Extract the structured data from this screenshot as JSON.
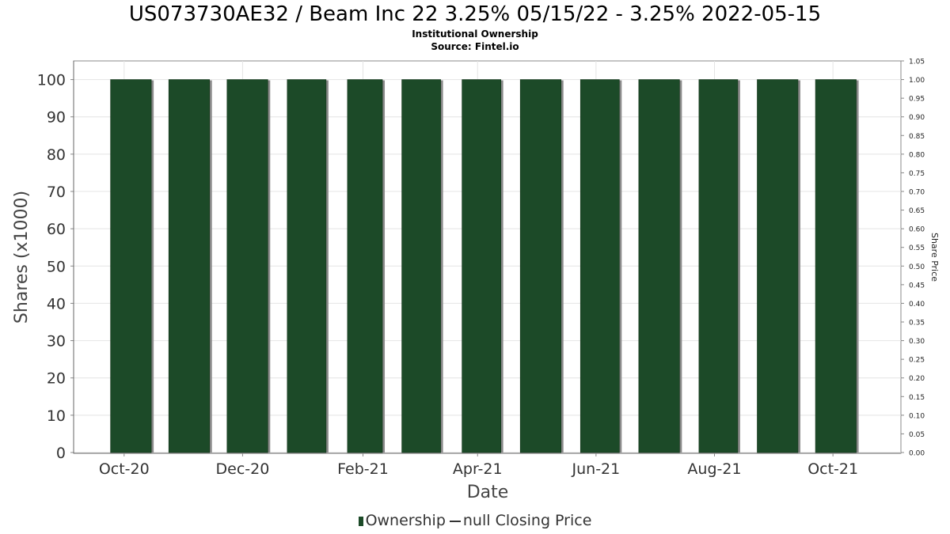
{
  "chart_data": {
    "type": "bar",
    "title": "US073730AE32 / Beam Inc 22 3.25% 05/15/22 - 3.25% 2022-05-15",
    "subtitle": "Institutional Ownership",
    "source": "Source: Fintel.io",
    "xlabel": "Date",
    "ylabel": "Shares (x1000)",
    "y2label": "Share Price",
    "ylim": [
      0,
      105
    ],
    "y2lim": [
      0,
      1.05
    ],
    "yticks": [
      0,
      10,
      20,
      30,
      40,
      50,
      60,
      70,
      80,
      90,
      100
    ],
    "y2ticks": [
      "0.00",
      "0.05",
      "0.10",
      "0.15",
      "0.20",
      "0.25",
      "0.30",
      "0.35",
      "0.40",
      "0.45",
      "0.50",
      "0.55",
      "0.60",
      "0.65",
      "0.70",
      "0.75",
      "0.80",
      "0.85",
      "0.90",
      "0.95",
      "1.00",
      "1.05"
    ],
    "xlim": [
      "2020-09-05",
      "2021-11-05"
    ],
    "xtick_labels": [
      {
        "label": "Oct-20",
        "date": "2020-10-01"
      },
      {
        "label": "Dec-20",
        "date": "2020-12-01"
      },
      {
        "label": "Feb-21",
        "date": "2021-02-01"
      },
      {
        "label": "Apr-21",
        "date": "2021-04-01"
      },
      {
        "label": "Jun-21",
        "date": "2021-06-01"
      },
      {
        "label": "Aug-21",
        "date": "2021-08-01"
      },
      {
        "label": "Oct-21",
        "date": "2021-10-01"
      }
    ],
    "grid": true,
    "legend_position": "bottom",
    "bar_color": "#1c4a28",
    "series": [
      {
        "name": "Ownership",
        "values": [
          {
            "start": "2020-09-24",
            "end": "2020-10-15",
            "value": 100
          },
          {
            "start": "2020-10-24",
            "end": "2020-11-14",
            "value": 100
          },
          {
            "start": "2020-11-23",
            "end": "2020-12-14",
            "value": 100
          },
          {
            "start": "2020-12-24",
            "end": "2021-01-13",
            "value": 100
          },
          {
            "start": "2021-01-24",
            "end": "2021-02-11",
            "value": 100
          },
          {
            "start": "2021-02-21",
            "end": "2021-03-13",
            "value": 100
          },
          {
            "start": "2021-03-24",
            "end": "2021-04-13",
            "value": 100
          },
          {
            "start": "2021-04-23",
            "end": "2021-05-14",
            "value": 100
          },
          {
            "start": "2021-05-24",
            "end": "2021-06-13",
            "value": 100
          },
          {
            "start": "2021-06-23",
            "end": "2021-07-14",
            "value": 100
          },
          {
            "start": "2021-07-24",
            "end": "2021-08-13",
            "value": 100
          },
          {
            "start": "2021-08-23",
            "end": "2021-09-13",
            "value": 100
          },
          {
            "start": "2021-09-22",
            "end": "2021-10-13",
            "value": 100
          }
        ]
      }
    ],
    "legend": [
      "Ownership",
      "null Closing Price"
    ]
  }
}
